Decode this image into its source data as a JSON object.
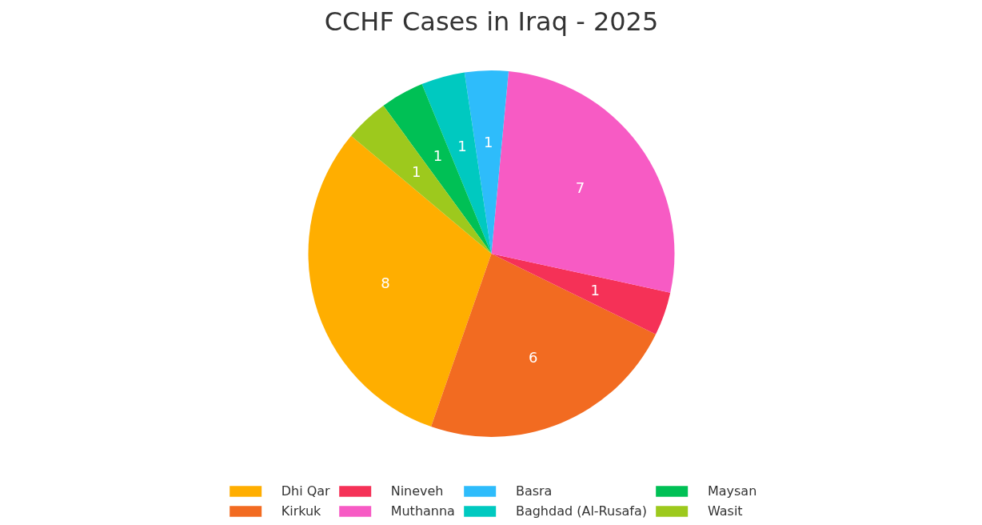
{
  "chart_data": {
    "type": "pie",
    "title": "CCHF Cases in Iraq - 2025",
    "categories": [
      "Dhi Qar",
      "Kirkuk",
      "Nineveh",
      "Muthanna",
      "Basra",
      "Baghdad (Al-Rusafa)",
      "Maysan",
      "Wasit"
    ],
    "values": [
      8,
      6,
      1,
      7,
      1,
      1,
      1,
      1
    ],
    "colors": [
      "#ffae00",
      "#f26b21",
      "#f53157",
      "#f75bc4",
      "#2ebcfb",
      "#00c9c0",
      "#00c055",
      "#9dc91d"
    ],
    "data_labels": true,
    "legend": "bottom"
  }
}
